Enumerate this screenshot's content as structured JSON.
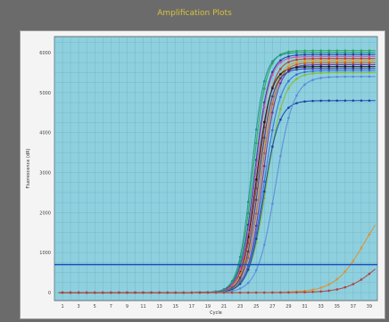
{
  "window": {
    "title": "Amplification Plots",
    "title_color": "#d8c23a",
    "background": "#6b6b6b"
  },
  "chart_data": {
    "type": "line",
    "title": "",
    "xlabel": "Cycle",
    "ylabel": "Fluorescence (dR)",
    "x_ticks": [
      "1",
      "3",
      "5",
      "7",
      "9",
      "11",
      "13",
      "15",
      "17",
      "19",
      "21",
      "23",
      "25",
      "27",
      "29",
      "31",
      "33",
      "35",
      "37",
      "39"
    ],
    "y_ticks": [
      "0",
      "1000",
      "2000",
      "3000",
      "4000",
      "5000",
      "6000"
    ],
    "xlim": [
      0,
      40
    ],
    "ylim": [
      -200,
      6400
    ],
    "grid": true,
    "plot_background": "#8fd0df",
    "threshold": {
      "value": 700,
      "color": "#1f4fbf"
    },
    "series": [
      {
        "color": "#1a3fa8",
        "plateau": 5950,
        "midpoint": 24.8,
        "slope": 1.15
      },
      {
        "color": "#c23b22",
        "plateau": 5850,
        "midpoint": 25.2,
        "slope": 1.1
      },
      {
        "color": "#2aa84a",
        "plateau": 6050,
        "midpoint": 24.6,
        "slope": 1.2
      },
      {
        "color": "#e0a020",
        "plateau": 5800,
        "midpoint": 25.4,
        "slope": 1.05
      },
      {
        "color": "#7a2a9a",
        "plateau": 5700,
        "midpoint": 25.8,
        "slope": 1.1
      },
      {
        "color": "#1a1a1a",
        "plateau": 5650,
        "midpoint": 25.0,
        "slope": 1.12
      },
      {
        "color": "#d84fa0",
        "plateau": 5900,
        "midpoint": 24.9,
        "slope": 1.18
      },
      {
        "color": "#2f6fd8",
        "plateau": 5550,
        "midpoint": 26.0,
        "slope": 1.0
      },
      {
        "color": "#20908f",
        "plateau": 6000,
        "midpoint": 24.4,
        "slope": 1.25
      },
      {
        "color": "#d45a1a",
        "plateau": 5750,
        "midpoint": 25.6,
        "slope": 1.08
      },
      {
        "color": "#3a3aa0",
        "plateau": 5600,
        "midpoint": 25.3,
        "slope": 1.15
      },
      {
        "color": "#8ab82a",
        "plateau": 5500,
        "midpoint": 26.3,
        "slope": 0.95
      },
      {
        "color": "#1a3fa8",
        "plateau": 4800,
        "midpoint": 25.9,
        "slope": 1.05
      },
      {
        "color": "#5a8ad8",
        "plateau": 5400,
        "midpoint": 27.4,
        "slope": 0.9
      },
      {
        "color": "#e0902a",
        "plateau": 2500,
        "midpoint": 38.4,
        "slope": 0.55
      },
      {
        "color": "#b04040",
        "plateau": 1200,
        "midpoint": 39.8,
        "slope": 0.55
      }
    ]
  }
}
